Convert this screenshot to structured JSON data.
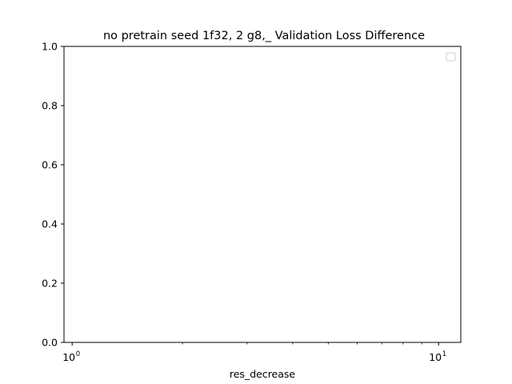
{
  "chart_data": {
    "type": "line",
    "title": "no pretrain seed 1f32, 2 g8,_ Validation Loss Difference",
    "xlabel": "res_decrease",
    "ylabel": "",
    "x_scale": "log",
    "xlim": [
      0.95,
      11.5
    ],
    "ylim": [
      0,
      1
    ],
    "x_major_ticks": [
      1,
      10
    ],
    "x_major_tick_labels": [
      "10",
      "10"
    ],
    "x_tick_exponents": [
      "0",
      "1"
    ],
    "x_minor_ticks": [
      2,
      3,
      4,
      5,
      6,
      7,
      8,
      9
    ],
    "y_ticks": [
      0,
      0.2,
      0.4,
      0.6,
      0.8,
      1
    ],
    "y_tick_labels": [
      "0.0",
      "0.2",
      "0.4",
      "0.6",
      "0.8",
      "1.0"
    ],
    "series": [],
    "grid": false,
    "legend": {
      "position": "top-right",
      "entries": []
    }
  }
}
